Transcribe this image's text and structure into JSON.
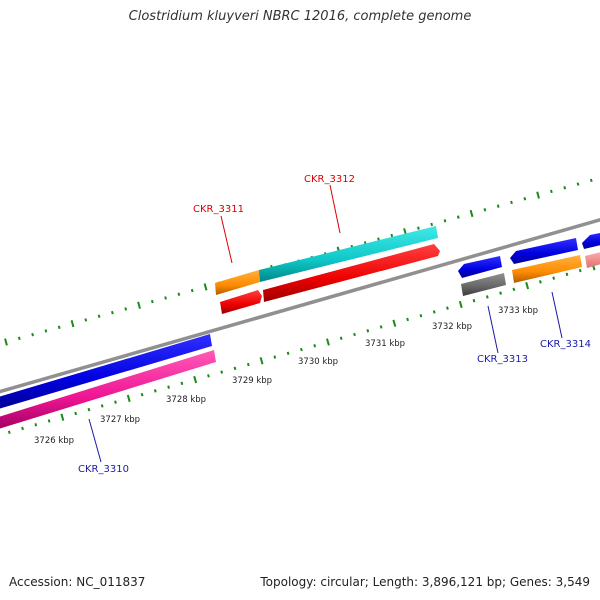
{
  "title": "Clostridium kluyveri NBRC 12016, complete genome",
  "footer": {
    "accession": "Accession: NC_011837",
    "summary": "Topology: circular; Length: 3,896,121 bp; Genes: 3,549"
  },
  "colors": {
    "backbone": "#888888",
    "ticks": "#1a8a1a",
    "label_top": "#dd0000",
    "label_bottom": "#1a1aaa",
    "kbp_text": "#222222"
  },
  "kbp_labels": [
    "3726 kbp",
    "3727 kbp",
    "3728 kbp",
    "3729 kbp",
    "3730 kbp",
    "3731 kbp",
    "3732 kbp",
    "3733 kbp"
  ],
  "gene_labels": {
    "top": [
      "CKR_3311",
      "CKR_3312"
    ],
    "bottom": [
      "CKR_3310",
      "CKR_3313",
      "CKR_3314"
    ]
  }
}
